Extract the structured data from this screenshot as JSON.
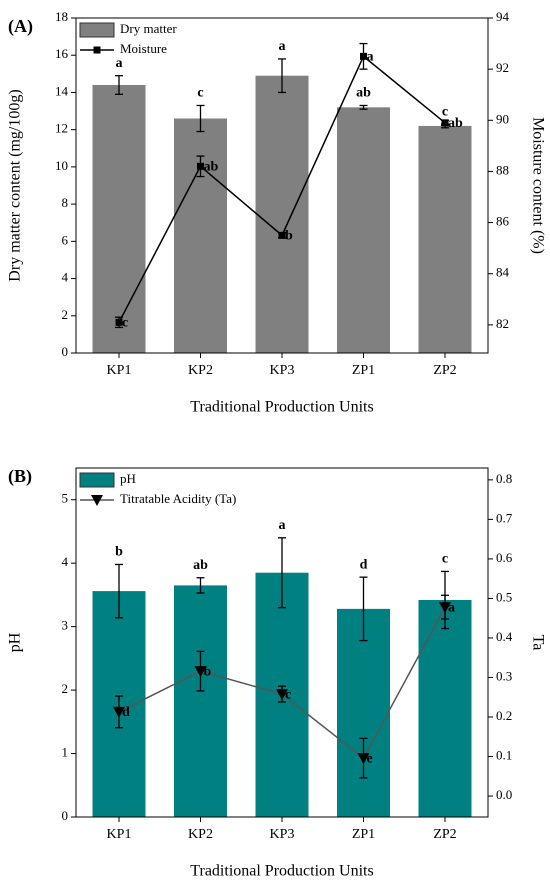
{
  "chart_data": [
    {
      "type": "bar_line",
      "panel": "(A)",
      "x_label": "Traditional Production Units",
      "y_label": "Dry matter content (mg/100g)",
      "y2_label": "Moisture content (%)",
      "categories": [
        "KP1",
        "KP2",
        "KP3",
        "ZP1",
        "ZP2"
      ],
      "ylim": [
        0,
        18
      ],
      "yticks": [
        0,
        2,
        4,
        6,
        8,
        10,
        12,
        14,
        16,
        18
      ],
      "y2lim": [
        80.9,
        94
      ],
      "y2ticks": [
        82,
        84,
        86,
        88,
        90,
        92,
        94
      ],
      "legend": "upper left",
      "series": [
        {
          "name": "Dry matter",
          "kind": "bar",
          "color": "#808080",
          "values": [
            14.4,
            12.6,
            14.9,
            13.2,
            12.2
          ],
          "errors": [
            0.5,
            0.7,
            0.9,
            0.1,
            0.1
          ],
          "letters": [
            "a",
            "c",
            "a",
            "ab",
            "c"
          ]
        },
        {
          "name": "Moisture",
          "kind": "line",
          "axis": "y2",
          "color": "#000000",
          "marker": "square",
          "values": [
            82.1,
            88.2,
            85.5,
            92.5,
            89.9
          ],
          "errors": [
            0.2,
            0.4,
            0.1,
            0.5,
            0.1
          ],
          "letters": [
            "c",
            "ab",
            "b",
            "a",
            "ab"
          ]
        }
      ]
    },
    {
      "type": "bar_line",
      "panel": "(B)",
      "x_label": "Traditional Production Units",
      "y_label": "pH",
      "y2_label": "Ta",
      "categories": [
        "KP1",
        "KP2",
        "KP3",
        "ZP1",
        "ZP2"
      ],
      "ylim": [
        0,
        5.5
      ],
      "yticks": [
        0,
        1,
        2,
        3,
        4,
        5
      ],
      "y2lim": [
        -0.053,
        0.83
      ],
      "y2ticks": [
        {
          "value": 0,
          "label": "0.0"
        },
        0.1,
        0.2,
        0.3,
        0.4,
        0.5,
        0.6,
        0.7,
        0.8
      ],
      "legend": "upper left",
      "series": [
        {
          "name": "pH",
          "kind": "bar",
          "color": "#008080",
          "values": [
            3.56,
            3.65,
            3.85,
            3.28,
            3.42
          ],
          "errors": [
            0.42,
            0.12,
            0.55,
            0.5,
            0.45
          ],
          "letters": [
            "b",
            "ab",
            "a",
            "d",
            "c"
          ]
        },
        {
          "name": "Titratable Acidity (Ta)",
          "kind": "line",
          "axis": "y2",
          "color": "#555555",
          "marker": "triangle-down",
          "values": [
            0.213,
            0.316,
            0.258,
            0.096,
            0.478
          ],
          "errors": [
            0.04,
            0.05,
            0.02,
            0.05,
            0.03
          ],
          "letters": [
            "d",
            "b",
            "c",
            "e",
            "a"
          ]
        }
      ]
    }
  ]
}
